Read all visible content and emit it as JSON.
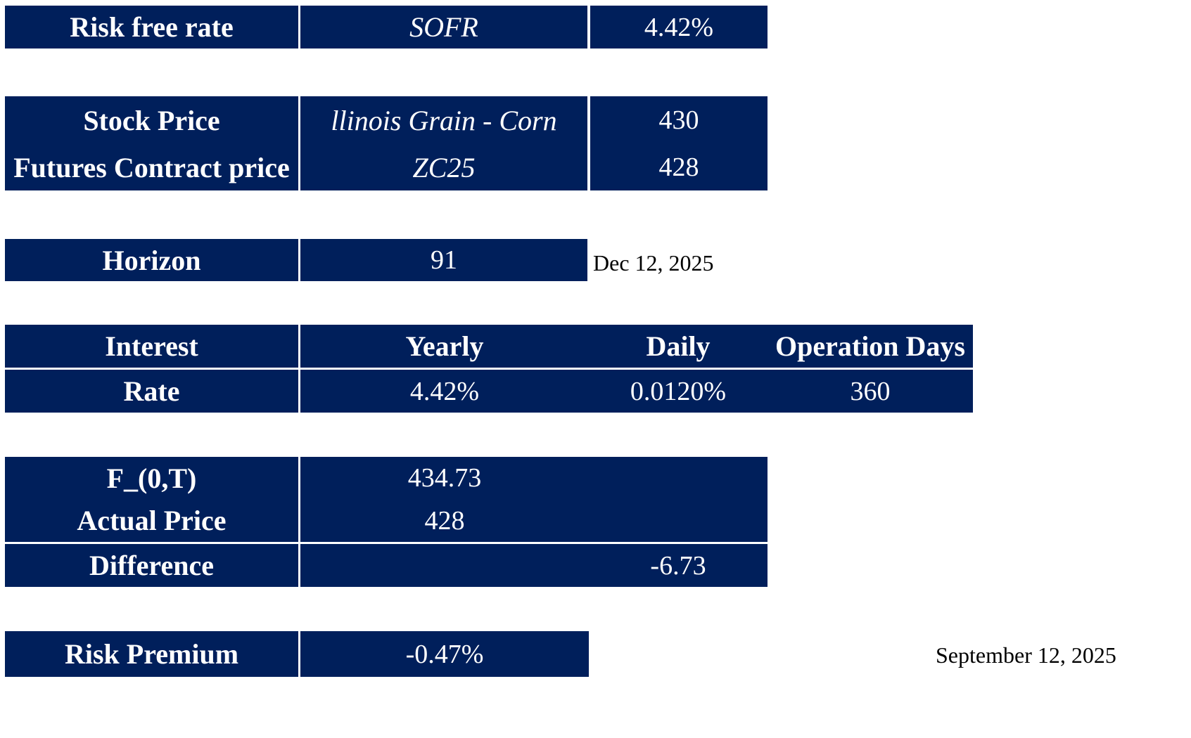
{
  "risk_free": {
    "label": "Risk free rate",
    "source": "SOFR",
    "value": "4.42%"
  },
  "prices": {
    "stock_label": "Stock Price",
    "stock_source": "llinois Grain - Corn",
    "stock_value": "430",
    "futures_label": "Futures Contract price",
    "futures_source": "ZC25",
    "futures_value": "428"
  },
  "horizon": {
    "label": "Horizon",
    "value": "91",
    "date": "Dec 12, 2025"
  },
  "interest": {
    "header_label": "Interest",
    "yearly_label": "Yearly",
    "daily_label": "Daily",
    "operation_label": "Operation Days",
    "rate_label": "Rate",
    "yearly_value": "4.42%",
    "daily_value": "0.0120%",
    "operation_value": "360"
  },
  "forward": {
    "f_label": "F_(0,T)",
    "f_value": "434.73",
    "actual_label": "Actual Price",
    "actual_value": "428",
    "diff_label": "Difference",
    "diff_value": "-6.73"
  },
  "risk_premium": {
    "label": "Risk Premium",
    "value": "-0.47%"
  },
  "footer_date": "September 12, 2025",
  "colors": {
    "cell_bg": "#001f5b",
    "cell_text": "#ffffff"
  }
}
